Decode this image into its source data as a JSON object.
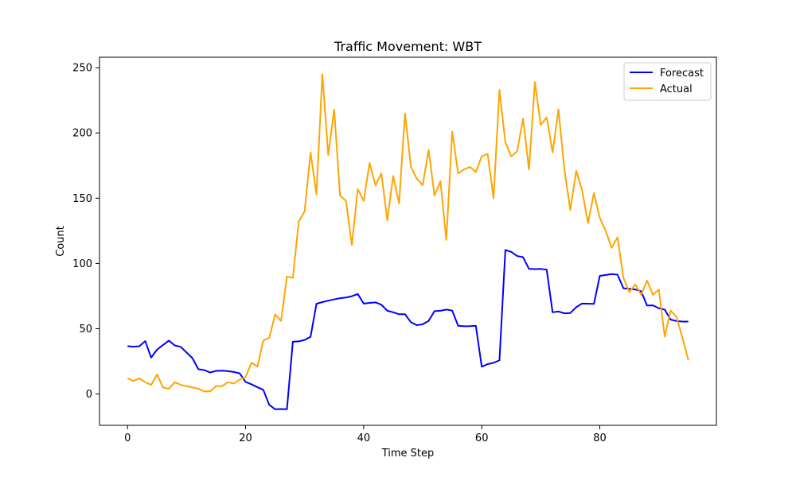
{
  "chart_data": {
    "type": "line",
    "title": "Traffic Movement: WBT",
    "xlabel": "Time Step",
    "ylabel": "Count",
    "xlim": [
      -4.75,
      99.75
    ],
    "ylim": [
      -24,
      258
    ],
    "xticks": [
      0,
      20,
      40,
      60,
      80
    ],
    "yticks": [
      0,
      50,
      100,
      150,
      200,
      250
    ],
    "grid": false,
    "legend_position": "top-right",
    "series": [
      {
        "name": "Forecast",
        "color": "#0000ff",
        "x": [
          0,
          1,
          2,
          3,
          4,
          5,
          6,
          7,
          8,
          9,
          10,
          11,
          12,
          13,
          14,
          15,
          16,
          17,
          18,
          19,
          20,
          21,
          22,
          23,
          24,
          25,
          26,
          27,
          28,
          29,
          30,
          31,
          32,
          33,
          34,
          35,
          36,
          37,
          38,
          39,
          40,
          41,
          42,
          43,
          44,
          45,
          46,
          47,
          48,
          49,
          50,
          51,
          52,
          53,
          54,
          55,
          56,
          57,
          58,
          59,
          60,
          61,
          62,
          63,
          64,
          65,
          66,
          67,
          68,
          69,
          70,
          71,
          72,
          73,
          74,
          75,
          76,
          77,
          78,
          79,
          80,
          81,
          82,
          83,
          84,
          85,
          86,
          87,
          88,
          89,
          90,
          91,
          92,
          93,
          94,
          95
        ],
        "values": [
          36.7,
          36.2,
          36.6,
          40.5,
          27.9,
          34,
          37.5,
          40.9,
          37.2,
          36.1,
          31.8,
          27.4,
          19,
          18.3,
          16.5,
          17.7,
          17.9,
          17.5,
          16.9,
          15.8,
          9.2,
          7.4,
          5.2,
          3.2,
          -8.3,
          -11.7,
          -11.5,
          -11.7,
          40,
          40.3,
          41.4,
          43.8,
          69.1,
          70.4,
          71.5,
          72.5,
          73.4,
          73.9,
          74.9,
          76.6,
          69.3,
          69.8,
          70.2,
          68.4,
          63.8,
          62.6,
          61.1,
          61.1,
          55,
          52.7,
          53.4,
          56,
          63.5,
          63.8,
          64.7,
          63.9,
          52.3,
          51.9,
          52,
          52.3,
          20.9,
          22.9,
          23.9,
          25.8,
          110.3,
          108.9,
          105.7,
          104.8,
          95.9,
          95.7,
          95.8,
          95.3,
          62.6,
          63.2,
          61.8,
          62,
          66.5,
          69.3,
          69.2,
          69,
          90.5,
          91.2,
          91.9,
          91.4,
          81,
          80.6,
          80.1,
          78.7,
          67.8,
          67.9,
          65.7,
          64.6,
          57,
          55.9,
          55.5,
          55.5
        ]
      },
      {
        "name": "Actual",
        "color": "#ffa500",
        "x": [
          0,
          1,
          2,
          3,
          4,
          5,
          6,
          7,
          8,
          9,
          10,
          11,
          12,
          13,
          14,
          15,
          16,
          17,
          18,
          19,
          20,
          21,
          22,
          23,
          24,
          25,
          26,
          27,
          28,
          29,
          30,
          31,
          32,
          33,
          34,
          35,
          36,
          37,
          38,
          39,
          40,
          41,
          42,
          43,
          44,
          45,
          46,
          47,
          48,
          49,
          50,
          51,
          52,
          53,
          54,
          55,
          56,
          57,
          58,
          59,
          60,
          61,
          62,
          63,
          64,
          65,
          66,
          67,
          68,
          69,
          70,
          71,
          72,
          73,
          74,
          75,
          76,
          77,
          78,
          79,
          80,
          81,
          82,
          83,
          84,
          85,
          86,
          87,
          88,
          89,
          90,
          91,
          92,
          93,
          94,
          95
        ],
        "values": [
          12,
          10,
          12,
          9,
          7,
          15,
          5,
          4,
          9,
          7,
          6,
          5,
          4,
          2,
          2,
          6,
          6,
          9,
          8,
          11,
          13,
          24,
          21,
          41,
          43,
          61,
          56,
          90,
          89,
          132,
          140,
          185,
          153,
          245,
          183,
          218,
          152,
          148,
          114,
          157,
          148,
          177,
          160,
          169,
          133,
          167,
          146,
          215,
          174,
          165,
          160,
          187,
          152,
          163,
          118,
          201,
          169,
          172,
          174,
          170,
          182,
          184,
          150,
          233,
          193,
          182,
          186,
          211,
          172,
          239,
          206,
          212,
          185,
          218,
          172,
          141,
          171,
          156,
          131,
          154,
          135,
          125,
          112,
          120,
          89,
          78,
          84,
          76,
          87,
          76,
          80,
          44,
          64,
          59,
          43,
          26
        ]
      }
    ]
  }
}
